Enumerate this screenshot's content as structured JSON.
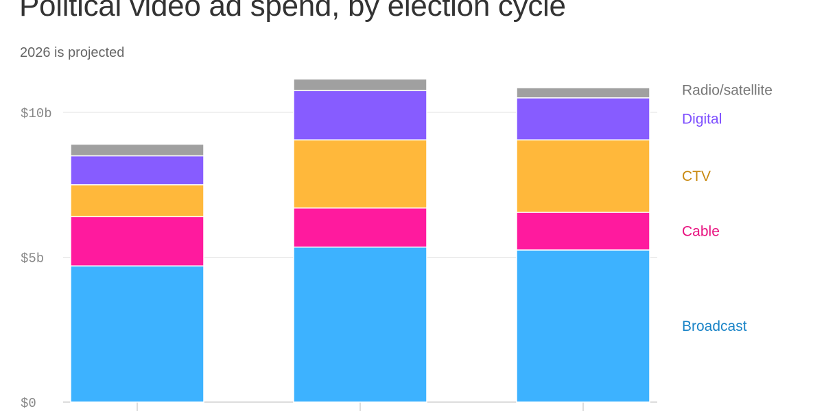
{
  "header": {
    "title": "Political video ad spend, by election cycle",
    "subtitle": "2026 is projected"
  },
  "chart_data": {
    "type": "bar",
    "stacked": true,
    "title": "Political video ad spend, by election cycle",
    "subtitle": "2026 is projected",
    "xlabel": "",
    "ylabel": "",
    "ylim": [
      0,
      11.5
    ],
    "y_ticks": [
      {
        "value": 0,
        "label": "$0"
      },
      {
        "value": 5,
        "label": "$5b"
      },
      {
        "value": 10,
        "label": "$10b"
      }
    ],
    "grid": true,
    "legend_position": "right",
    "categories": [
      "",
      "",
      ""
    ],
    "series": [
      {
        "name": "Broadcast",
        "color": "#3DB2FF",
        "label_color": "#1A84C7",
        "values": [
          4.7,
          5.35,
          5.25
        ]
      },
      {
        "name": "Cable",
        "color": "#FF1A9E",
        "label_color": "#E8117F",
        "values": [
          1.7,
          1.35,
          1.3
        ]
      },
      {
        "name": "CTV",
        "color": "#FFB83B",
        "label_color": "#C98A12",
        "values": [
          1.1,
          2.35,
          2.5
        ]
      },
      {
        "name": "Digital",
        "color": "#875CFF",
        "label_color": "#7C4DFF",
        "values": [
          1.0,
          1.7,
          1.45
        ]
      },
      {
        "name": "Radio/satellite",
        "color": "#A0A0A0",
        "label_color": "#777777",
        "values": [
          0.4,
          0.4,
          0.35
        ]
      }
    ]
  }
}
